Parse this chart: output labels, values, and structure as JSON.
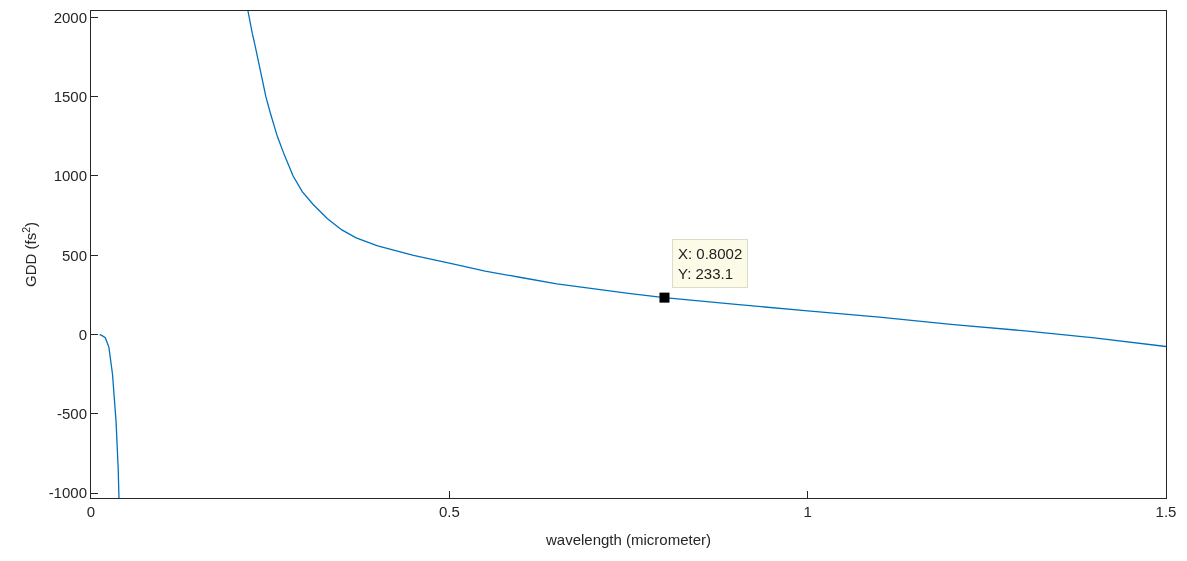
{
  "chart_data": {
    "type": "line",
    "xlabel": "wavelength (micrometer)",
    "ylabel": "GDD (fs$^{2}$)",
    "x": [
      0.012,
      0.015,
      0.02,
      0.025,
      0.03,
      0.035,
      0.038,
      0.039,
      0.1,
      0.219,
      0.225,
      0.23,
      0.237,
      0.244,
      0.25,
      0.26,
      0.27,
      0.282,
      0.295,
      0.31,
      0.33,
      0.35,
      0.37,
      0.4,
      0.45,
      0.5,
      0.55,
      0.6,
      0.65,
      0.7,
      0.75,
      0.8,
      0.9,
      1.0,
      1.1,
      1.2,
      1.3,
      1.4,
      1.5
    ],
    "series": [
      {
        "color": "#0072bd",
        "values": [
          0,
          -5,
          -20,
          -80,
          -250,
          -550,
          -850,
          -1030,
          null,
          2040,
          1900,
          1800,
          1650,
          1500,
          1400,
          1250,
          1130,
          1000,
          900,
          820,
          730,
          660,
          610,
          560,
          500,
          450,
          400,
          360,
          320,
          290,
          260,
          233,
          190,
          150,
          110,
          65,
          25,
          -20,
          -75
        ]
      }
    ],
    "xlim": [
      0,
      1.5
    ],
    "xticks": [
      0,
      0.5,
      1,
      1.5
    ],
    "ylim": [
      -1030,
      2040
    ],
    "yticks": [
      -1000,
      -500,
      0,
      500,
      1000,
      1500,
      2000
    ],
    "marker": "none",
    "line_style": "solid",
    "annotations": [
      {
        "text": "X: 0.8002\nY: 233.1",
        "x": 0.8002,
        "y": 233.1
      }
    ]
  }
}
